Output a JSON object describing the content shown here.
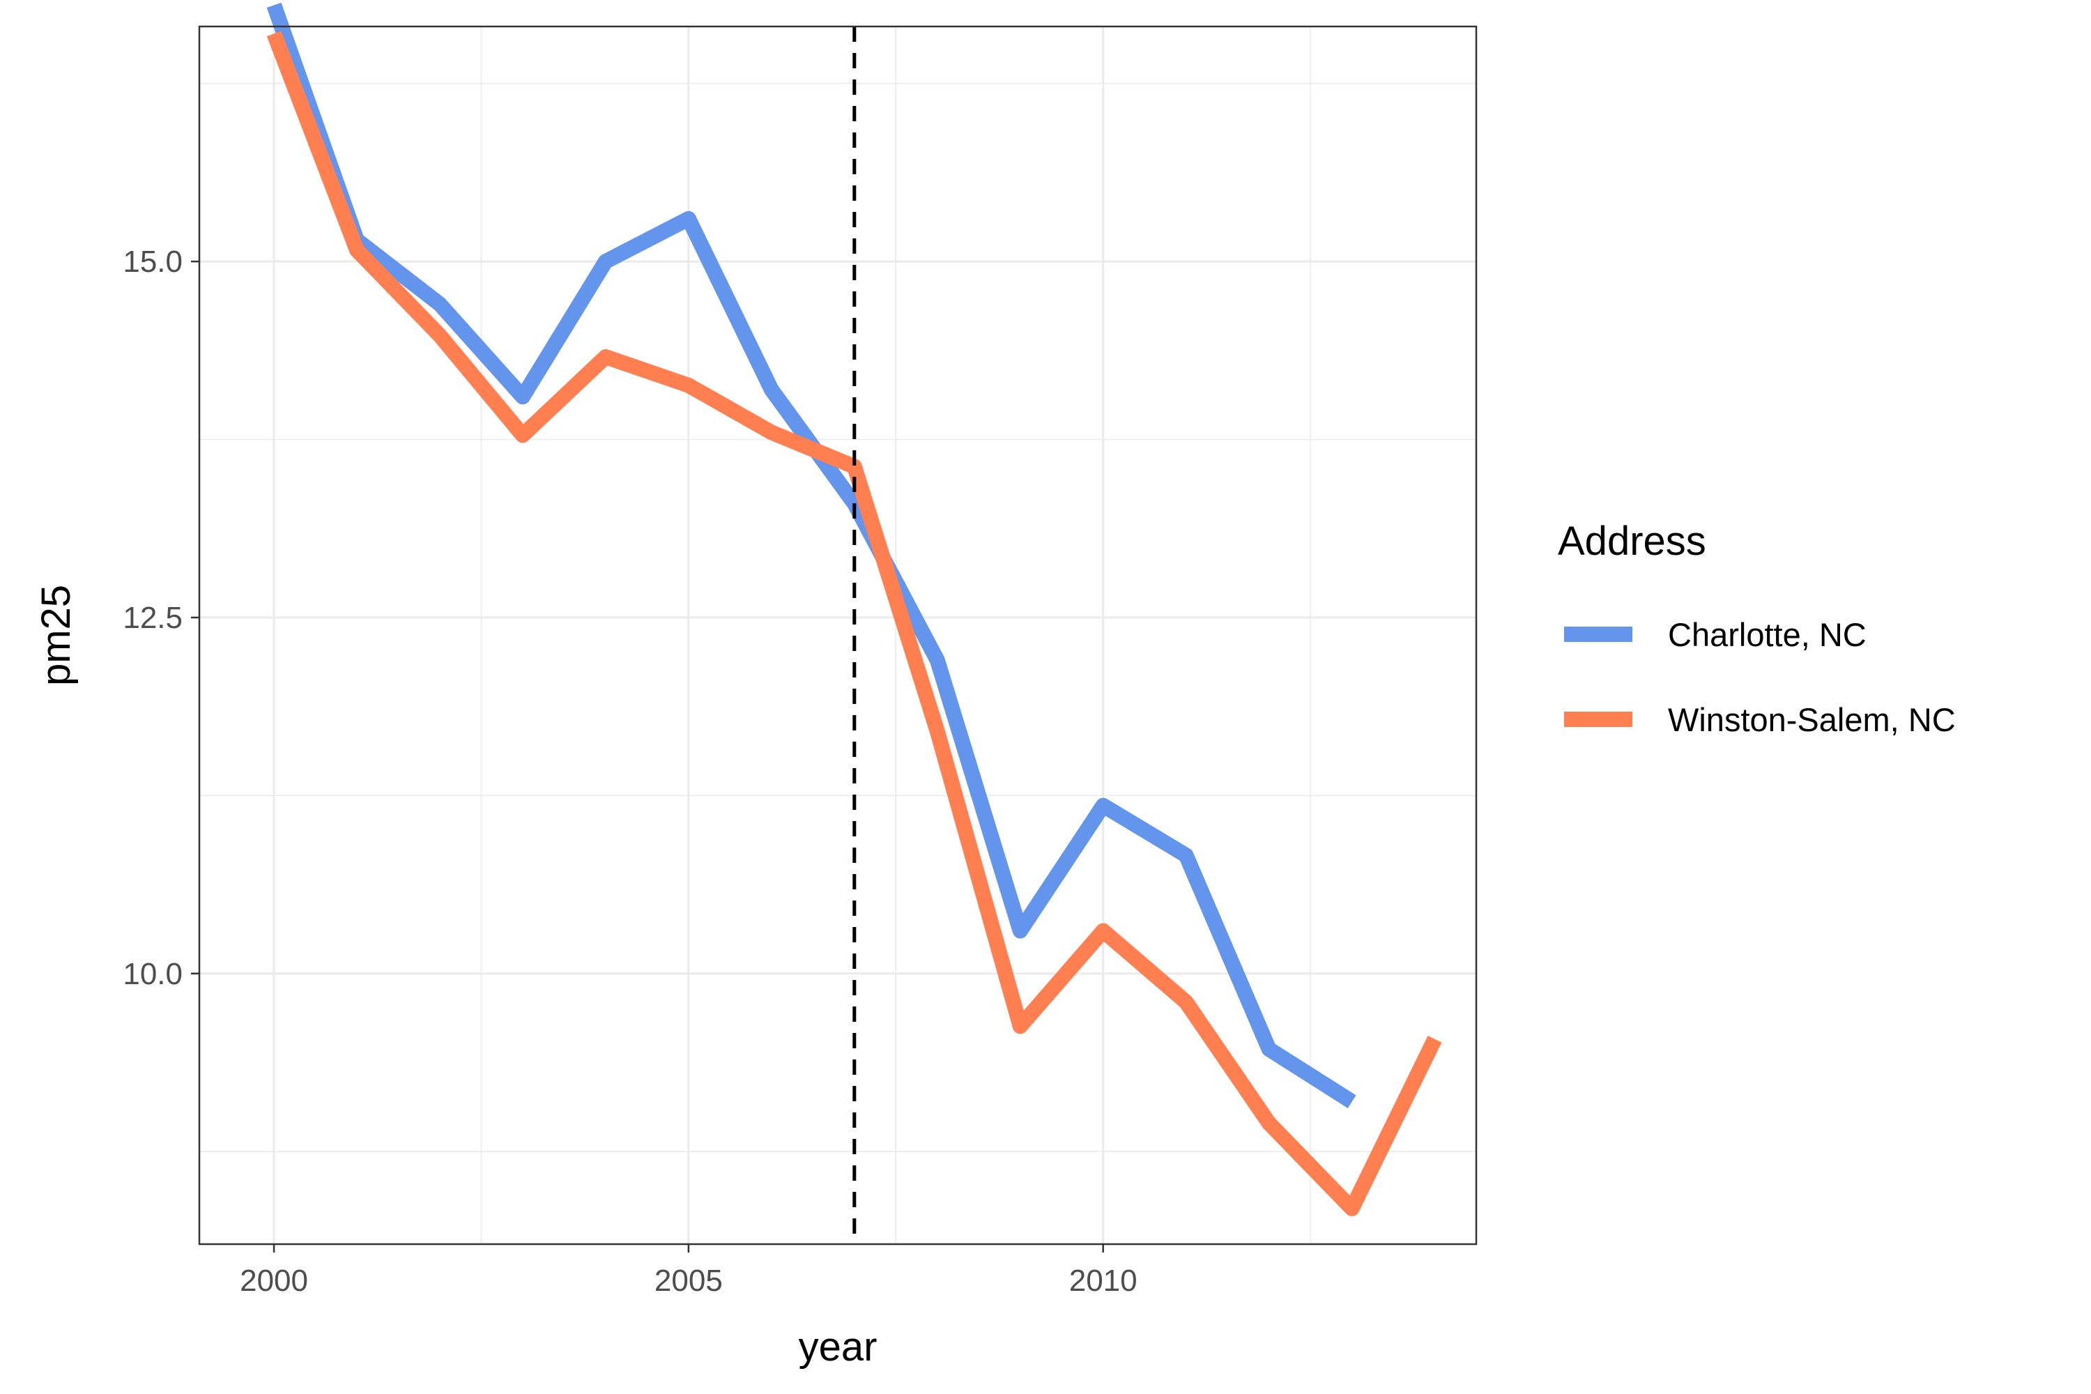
{
  "chart_data": {
    "type": "line",
    "xlabel": "year",
    "ylabel": "pm25",
    "xlim": [
      1999.1,
      2014.5
    ],
    "ylim": [
      8.1,
      16.65
    ],
    "x_ticks_major": [
      2000,
      2005,
      2010
    ],
    "x_tick_labels": [
      "2000",
      "2005",
      "2010"
    ],
    "x_ticks_minor": [
      2002.5,
      2007.5,
      2012.5
    ],
    "y_ticks_major": [
      10.0,
      12.5,
      15.0
    ],
    "y_tick_labels": [
      "10.0",
      "12.5",
      "15.0"
    ],
    "y_ticks_minor": [
      8.75,
      11.25,
      13.75,
      16.25
    ],
    "grid": true,
    "reference_line": {
      "x": 2007,
      "style": "dashed",
      "color": "#000000"
    },
    "legend": {
      "title": "Address",
      "position": "right"
    },
    "series": [
      {
        "name": "Charlotte, NC",
        "color": "#6495ED",
        "x": [
          2000,
          2001,
          2002,
          2003,
          2004,
          2005,
          2006,
          2007,
          2008,
          2009,
          2010,
          2011,
          2012,
          2013
        ],
        "values": [
          16.8,
          15.15,
          14.7,
          14.05,
          15.0,
          15.3,
          14.1,
          13.3,
          12.2,
          10.3,
          11.18,
          10.83,
          9.47,
          9.1
        ]
      },
      {
        "name": "Winston-Salem, NC",
        "color": "#FF7F50",
        "x": [
          2000,
          2001,
          2002,
          2003,
          2004,
          2005,
          2006,
          2007,
          2008,
          2009,
          2010,
          2011,
          2012,
          2013,
          2014
        ],
        "values": [
          16.6,
          15.08,
          14.48,
          13.78,
          14.33,
          14.13,
          13.8,
          13.56,
          11.7,
          9.63,
          10.3,
          9.8,
          8.95,
          8.35,
          9.54
        ]
      }
    ]
  }
}
